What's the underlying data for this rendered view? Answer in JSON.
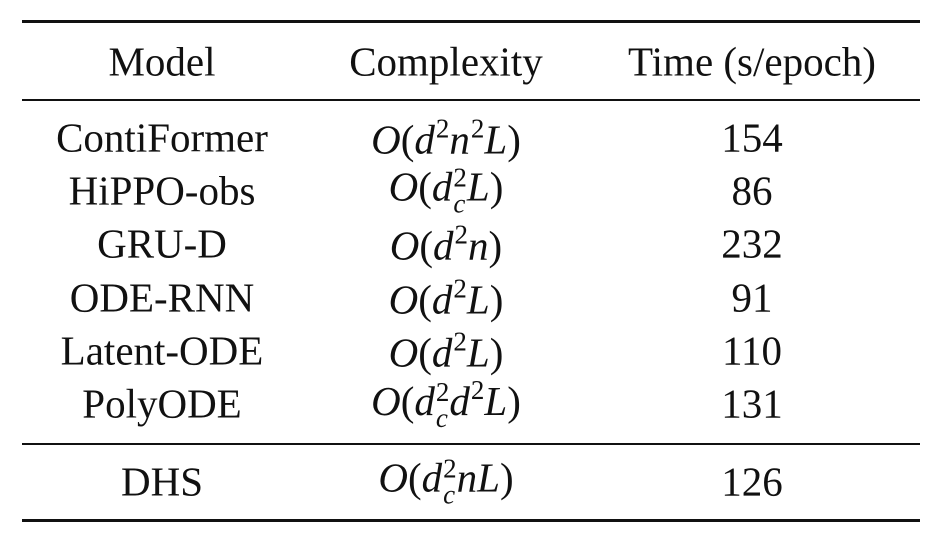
{
  "table": {
    "header": [
      "Model",
      "Complexity",
      "Time (s/epoch)"
    ],
    "groups": [
      [
        [
          "ContiFormer",
          [
            {
              "b": "O"
            },
            {
              "b": "("
            },
            {
              "b": "d",
              "sup": "2"
            },
            {
              "b": "n",
              "sup": "2"
            },
            {
              "b": "L"
            },
            {
              "b": ")"
            }
          ],
          154
        ],
        [
          "HiPPO-obs",
          [
            {
              "b": "O"
            },
            {
              "b": "("
            },
            {
              "b": "d",
              "sub": "c",
              "sup": "2"
            },
            {
              "b": "L"
            },
            {
              "b": ")"
            }
          ],
          86
        ],
        [
          "GRU-D",
          [
            {
              "b": "O"
            },
            {
              "b": "("
            },
            {
              "b": "d",
              "sup": "2"
            },
            {
              "b": "n"
            },
            {
              "b": ")"
            }
          ],
          232
        ],
        [
          "ODE-RNN",
          [
            {
              "b": "O"
            },
            {
              "b": "("
            },
            {
              "b": "d",
              "sup": "2"
            },
            {
              "b": "L"
            },
            {
              "b": ")"
            }
          ],
          91
        ],
        [
          "Latent-ODE",
          [
            {
              "b": "O"
            },
            {
              "b": "("
            },
            {
              "b": "d",
              "sup": "2"
            },
            {
              "b": "L"
            },
            {
              "b": ")"
            }
          ],
          110
        ],
        [
          "PolyODE",
          [
            {
              "b": "O"
            },
            {
              "b": "("
            },
            {
              "b": "d",
              "sub": "c",
              "sup": "2"
            },
            {
              "b": "d",
              "sup": "2"
            },
            {
              "b": "L"
            },
            {
              "b": ")"
            }
          ],
          131
        ]
      ],
      [
        [
          "DHS",
          [
            {
              "b": "O"
            },
            {
              "b": "("
            },
            {
              "b": "d",
              "sub": "c",
              "sup": "2"
            },
            {
              "b": "n"
            },
            {
              "b": "L"
            },
            {
              "b": ")"
            }
          ],
          126
        ]
      ]
    ]
  }
}
